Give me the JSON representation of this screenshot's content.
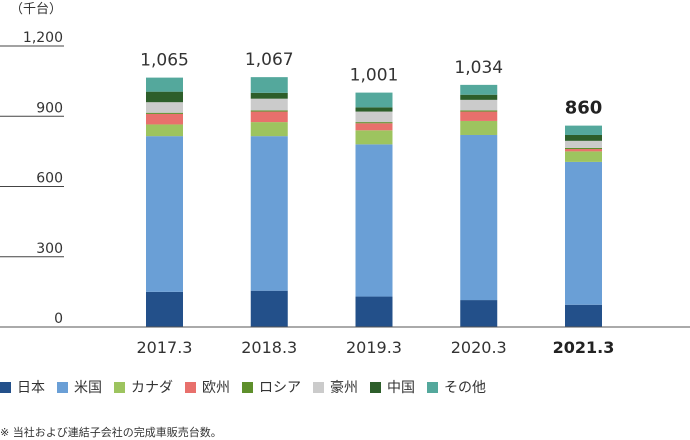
{
  "chart_data": {
    "type": "bar",
    "stacked": true,
    "unit_label": "（千台）",
    "categories": [
      "2017.3",
      "2018.3",
      "2019.3",
      "2020.3",
      "2021.3"
    ],
    "highlight_category": "2021.3",
    "totals": [
      "1,065",
      "1,067",
      "1,001",
      "1,034",
      "860"
    ],
    "y_ticks": [
      "0",
      "300",
      "600",
      "900",
      "1,200"
    ],
    "y_tick_values": [
      0,
      300,
      600,
      900,
      1200
    ],
    "ylim": [
      0,
      1200
    ],
    "grid": false,
    "legend_position": "bottom",
    "series": [
      {
        "name": "日本",
        "color": "#23508a",
        "values": [
          150,
          155,
          130,
          115,
          95
        ]
      },
      {
        "name": "米国",
        "color": "#6a9fd6",
        "values": [
          665,
          660,
          650,
          705,
          610
        ]
      },
      {
        "name": "カナダ",
        "color": "#9dc45f",
        "values": [
          50,
          60,
          60,
          60,
          45
        ]
      },
      {
        "name": "欧州",
        "color": "#e8706c",
        "values": [
          45,
          45,
          30,
          40,
          10
        ]
      },
      {
        "name": "ロシア",
        "color": "#5e8f2b",
        "values": [
          5,
          5,
          5,
          5,
          5
        ]
      },
      {
        "name": "豪州",
        "color": "#cbcbcb",
        "values": [
          45,
          50,
          45,
          45,
          30
        ]
      },
      {
        "name": "中国",
        "color": "#2d5e2a",
        "values": [
          45,
          25,
          18,
          22,
          25
        ]
      },
      {
        "name": "その他",
        "color": "#54a89c",
        "values": [
          60,
          67,
          63,
          42,
          40
        ]
      }
    ]
  },
  "footnote": "※ 当社および連結子会社の完成車販売台数。"
}
